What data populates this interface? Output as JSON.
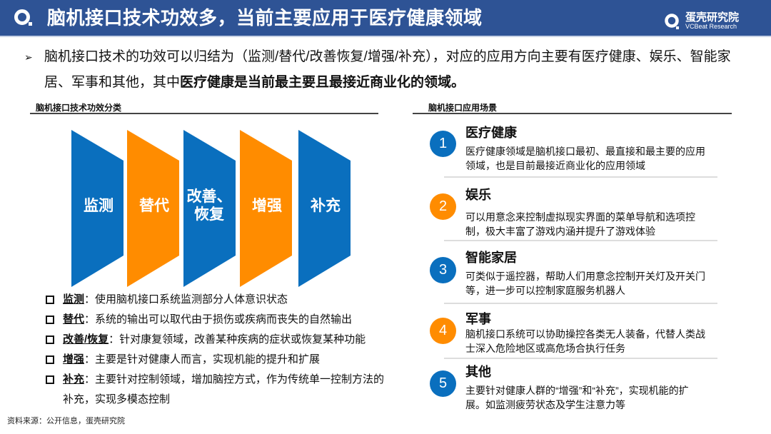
{
  "header": {
    "title": "脑机接口技术功效多，当前主要应用于医疗健康领域",
    "logo_name": "蛋壳研究院",
    "logo_sub": "VCBeat Research"
  },
  "intro": {
    "text_plain": "脑机接口技术的功效可以归结为（监测/替代/改善恢复/增强/补充），对应的应用方向主要有医疗健康、娱乐、智能家居、军事和其他，其中",
    "text_bold": "医疗健康是当前最主要且最接近商业化的领域。"
  },
  "left_section": {
    "title": "脑机接口技术功效分类",
    "panels": [
      {
        "label": "监测",
        "color": "#0A6FBE"
      },
      {
        "label": "替代",
        "color": "#FF8C00"
      },
      {
        "label": "改善、恢复",
        "color": "#0A6FBE"
      },
      {
        "label": "增强",
        "color": "#FF8C00"
      },
      {
        "label": "补充",
        "color": "#0A6FBE"
      }
    ],
    "items": [
      {
        "term": "监测",
        "desc": "：使用脑机接口系统监测部分人体意识状态"
      },
      {
        "term": "替代",
        "desc": "：系统的输出可以取代由于损伤或疾病而丧失的自然输出"
      },
      {
        "term": "改善/恢复",
        "desc": "：针对康复领域，改善某种疾病的症状或恢复某种功能"
      },
      {
        "term": "增强",
        "desc": "：主要是针对健康人而言，实现机能的提升和扩展"
      },
      {
        "term": "补充",
        "desc": "：主要针对控制领域，增加脑控方式，作为传统单一控制方法的补充，实现多模态控制"
      }
    ]
  },
  "right_section": {
    "title": "脑机接口应用场景",
    "items": [
      {
        "num": "1",
        "title": "医疗健康",
        "desc": "医疗健康领域是脑机接口最初、最直接和最主要的应用领域，也是目前最接近商业化的应用领域",
        "color": "#0A6FBE"
      },
      {
        "num": "2",
        "title": "娱乐",
        "desc": "可以用意念来控制虚拟现实界面的菜单导航和选项控制，极大丰富了游戏内涵并提升了游戏体验",
        "color": "#FF8C00"
      },
      {
        "num": "3",
        "title": "智能家居",
        "desc": "可类似于遥控器，帮助人们用意念控制开关灯及开关门等，进一步可以控制家庭服务机器人",
        "color": "#0A6FBE"
      },
      {
        "num": "4",
        "title": "军事",
        "desc": "脑机接口系统可以协助操控各类无人装备，代替人类战士深入危险地区或高危场合执行任务",
        "color": "#FF8C00"
      },
      {
        "num": "5",
        "title": "其他",
        "desc": "主要针对健康人群的“增强”和“补充”，实现机能的扩展。如监测疲劳状态及学生注意力等",
        "color": "#0A6FBE"
      }
    ]
  },
  "source": "资料来源：公开信息，蛋壳研究院"
}
